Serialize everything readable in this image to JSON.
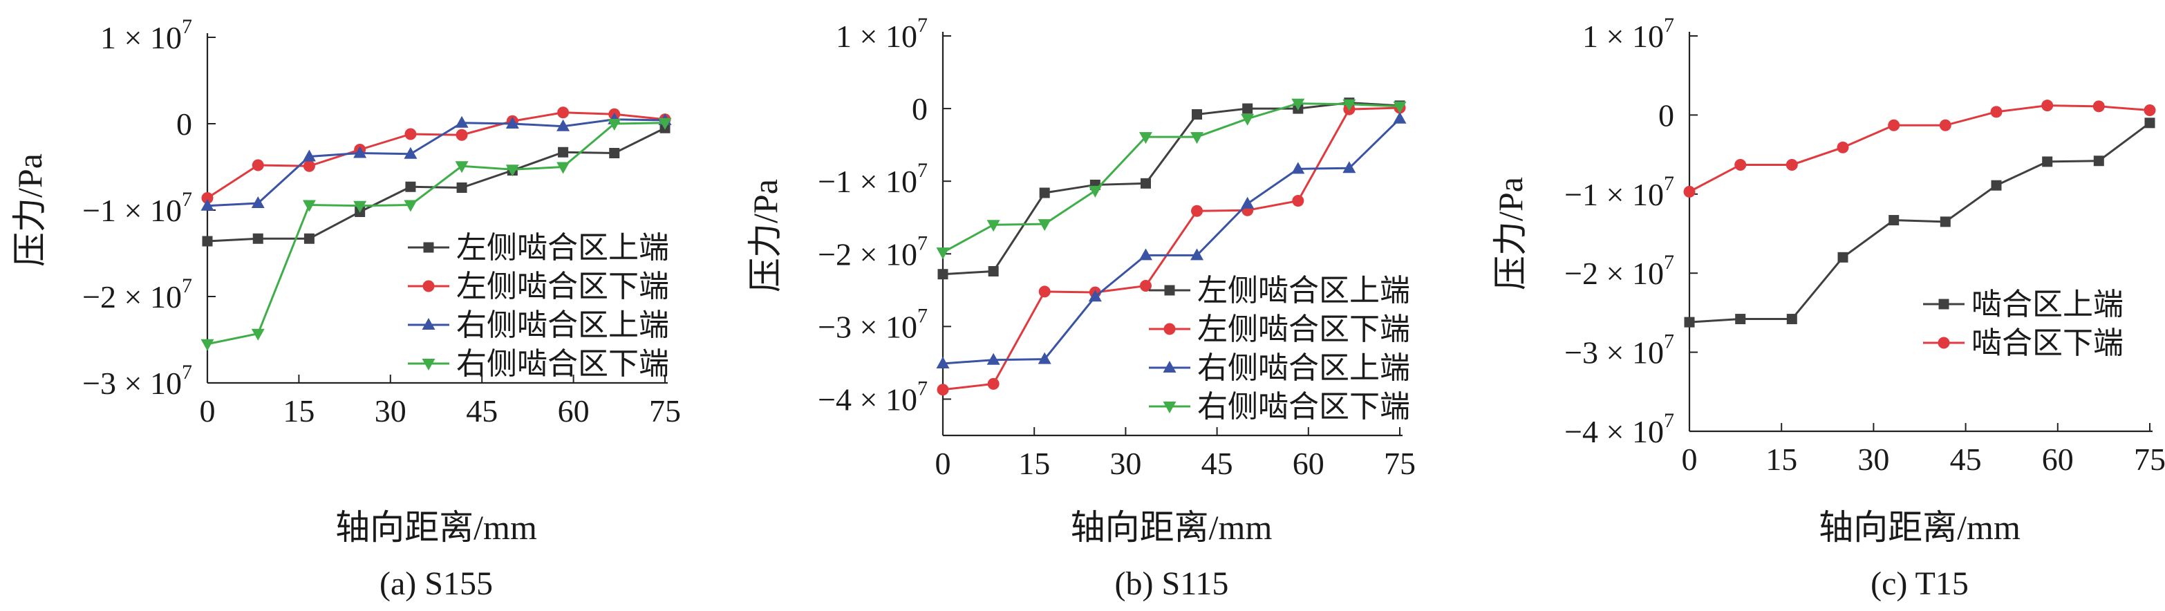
{
  "colors": {
    "dark": "#404040",
    "red": "#e03a3e",
    "blue": "#3a53a4",
    "green": "#3fae49"
  },
  "chart_data": [
    {
      "type": "line",
      "caption": "(a) S155",
      "xlabel": "轴向距离/mm",
      "ylabel": "压力/Pa",
      "xlim": [
        0,
        75
      ],
      "ylim": [
        -30000000,
        10000000
      ],
      "x_ticks": [
        0,
        15,
        30,
        45,
        60,
        75
      ],
      "y_ticks": [
        {
          "value": 10000000,
          "mant": "1 × 10",
          "exp": "7"
        },
        {
          "value": 0,
          "mant": "0",
          "exp": ""
        },
        {
          "value": -10000000,
          "mant": "−1 × 10",
          "exp": "7"
        },
        {
          "value": -20000000,
          "mant": "−2 × 10",
          "exp": "7"
        },
        {
          "value": -30000000,
          "mant": "−3 × 10",
          "exp": "7"
        }
      ],
      "legend_position": "middle-right",
      "x": [
        0,
        8.3,
        16.7,
        25,
        33.3,
        41.7,
        50,
        58.3,
        66.7,
        75
      ],
      "series": [
        {
          "name": "左侧啮合区上端",
          "color": "#404040",
          "marker": "square",
          "values": [
            -13600000,
            -13300000,
            -13300000,
            -10200000,
            -7300000,
            -7400000,
            -5400000,
            -3300000,
            -3400000,
            -500000
          ]
        },
        {
          "name": "左侧啮合区下端",
          "color": "#e03a3e",
          "marker": "circle",
          "values": [
            -8600000,
            -4800000,
            -4900000,
            -3000000,
            -1200000,
            -1300000,
            300000,
            1300000,
            1100000,
            500000
          ]
        },
        {
          "name": "右侧啮合区上端",
          "color": "#3a53a4",
          "marker": "triangle-up",
          "values": [
            -9500000,
            -9200000,
            -3800000,
            -3400000,
            -3500000,
            100000,
            0,
            -300000,
            500000,
            400000
          ]
        },
        {
          "name": "右侧啮合区下端",
          "color": "#3fae49",
          "marker": "triangle-down",
          "values": [
            -25500000,
            -24300000,
            -9400000,
            -9500000,
            -9400000,
            -4900000,
            -5300000,
            -5000000,
            0,
            100000
          ]
        }
      ]
    },
    {
      "type": "line",
      "caption": "(b) S115",
      "xlabel": "轴向距离/mm",
      "ylabel": "压力/Pa",
      "xlim": [
        0,
        75
      ],
      "ylim": [
        -45000000,
        10000000
      ],
      "x_ticks": [
        0,
        15,
        30,
        45,
        60,
        75
      ],
      "y_ticks": [
        {
          "value": 10000000,
          "mant": "1 × 10",
          "exp": "7"
        },
        {
          "value": 0,
          "mant": "0",
          "exp": ""
        },
        {
          "value": -10000000,
          "mant": "−1 × 10",
          "exp": "7"
        },
        {
          "value": -20000000,
          "mant": "−2 × 10",
          "exp": "7"
        },
        {
          "value": -30000000,
          "mant": "−3 × 10",
          "exp": "7"
        },
        {
          "value": -40000000,
          "mant": "−4 × 10",
          "exp": "7"
        }
      ],
      "legend_position": "bottom-right",
      "x": [
        0,
        8.3,
        16.7,
        25,
        33.3,
        41.7,
        50,
        58.3,
        66.7,
        75
      ],
      "series": [
        {
          "name": "左侧啮合区上端",
          "color": "#404040",
          "marker": "square",
          "values": [
            -22800000,
            -22400000,
            -11600000,
            -10500000,
            -10300000,
            -800000,
            0,
            0,
            800000,
            400000
          ]
        },
        {
          "name": "左侧啮合区下端",
          "color": "#e03a3e",
          "marker": "circle",
          "values": [
            -38700000,
            -37900000,
            -25200000,
            -25300000,
            -24400000,
            -14100000,
            -14000000,
            -12700000,
            -100000,
            100000
          ]
        },
        {
          "name": "右侧啮合区上端",
          "color": "#3a53a4",
          "marker": "triangle-up",
          "values": [
            -35100000,
            -34600000,
            -34500000,
            -25900000,
            -20200000,
            -20200000,
            -13100000,
            -8300000,
            -8200000,
            -1400000
          ]
        },
        {
          "name": "右侧啮合区下端",
          "color": "#3fae49",
          "marker": "triangle-down",
          "values": [
            -19800000,
            -16000000,
            -15900000,
            -11300000,
            -3900000,
            -3900000,
            -1400000,
            700000,
            600000,
            300000
          ]
        }
      ]
    },
    {
      "type": "line",
      "caption": "(c) T15",
      "xlabel": "轴向距离/mm",
      "ylabel": "压力/Pa",
      "xlim": [
        0,
        75
      ],
      "ylim": [
        -40000000,
        10000000
      ],
      "x_ticks": [
        0,
        15,
        30,
        45,
        60,
        75
      ],
      "y_ticks": [
        {
          "value": 10000000,
          "mant": "1 × 10",
          "exp": "7"
        },
        {
          "value": 0,
          "mant": "0",
          "exp": ""
        },
        {
          "value": -10000000,
          "mant": "−1 × 10",
          "exp": "7"
        },
        {
          "value": -20000000,
          "mant": "−2 × 10",
          "exp": "7"
        },
        {
          "value": -30000000,
          "mant": "−3 × 10",
          "exp": "7"
        },
        {
          "value": -40000000,
          "mant": "−4 × 10",
          "exp": "7"
        }
      ],
      "legend_position": "middle-right",
      "x": [
        0,
        8.3,
        16.7,
        25,
        33.3,
        41.7,
        50,
        58.3,
        66.7,
        75
      ],
      "series": [
        {
          "name": "啮合区上端",
          "color": "#404040",
          "marker": "square",
          "values": [
            -26200000,
            -25800000,
            -25800000,
            -18000000,
            -13300000,
            -13500000,
            -8900000,
            -5900000,
            -5800000,
            -1000000
          ]
        },
        {
          "name": "啮合区下端",
          "color": "#e03a3e",
          "marker": "circle",
          "values": [
            -9700000,
            -6300000,
            -6300000,
            -4100000,
            -1300000,
            -1300000,
            400000,
            1200000,
            1100000,
            600000
          ]
        }
      ]
    }
  ]
}
